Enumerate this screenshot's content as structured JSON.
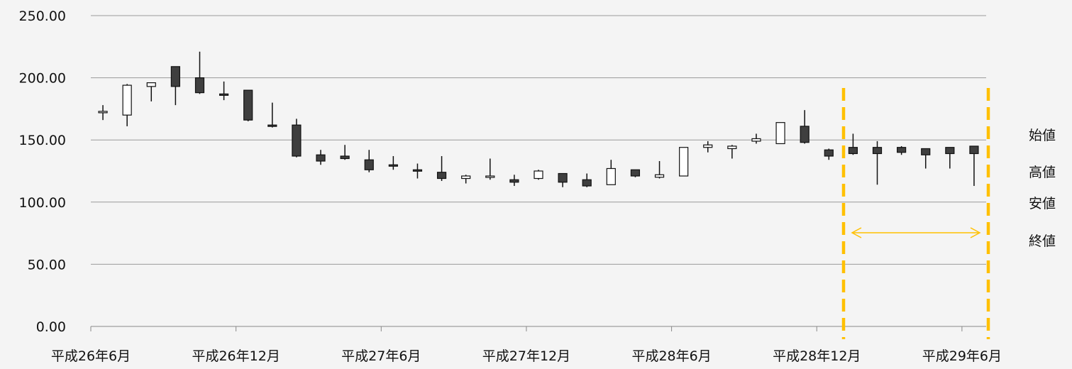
{
  "chart_data": {
    "type": "candlestick",
    "y_axis": {
      "min": 0,
      "max": 250,
      "step": 50,
      "tick_labels": [
        "0.00",
        "50.00",
        "100.00",
        "150.00",
        "200.00",
        "250.00"
      ]
    },
    "x_tick_labels": [
      "平成26年6月",
      "平成26年12月",
      "平成27年6月",
      "平成27年12月",
      "平成28年6月",
      "平成28年12月",
      "平成29年6月"
    ],
    "legend": [
      "始値",
      "高値",
      "安値",
      "終値"
    ],
    "series": [
      {
        "open": 172,
        "high": 178,
        "low": 166,
        "close": 173
      },
      {
        "open": 170,
        "high": 195,
        "low": 161,
        "close": 194
      },
      {
        "open": 193,
        "high": 196,
        "low": 181,
        "close": 196
      },
      {
        "open": 209,
        "high": 209,
        "low": 178,
        "close": 193
      },
      {
        "open": 200,
        "high": 221,
        "low": 187,
        "close": 188
      },
      {
        "open": 187,
        "high": 197,
        "low": 182,
        "close": 186
      },
      {
        "open": 190,
        "high": 190,
        "low": 165,
        "close": 166
      },
      {
        "open": 162,
        "high": 180,
        "low": 160,
        "close": 161
      },
      {
        "open": 162,
        "high": 167,
        "low": 136,
        "close": 137
      },
      {
        "open": 138,
        "high": 142,
        "low": 130,
        "close": 133
      },
      {
        "open": 137,
        "high": 146,
        "low": 134,
        "close": 135
      },
      {
        "open": 134,
        "high": 142,
        "low": 124,
        "close": 126
      },
      {
        "open": 130,
        "high": 137,
        "low": 126,
        "close": 129
      },
      {
        "open": 126,
        "high": 131,
        "low": 119,
        "close": 125
      },
      {
        "open": 124,
        "high": 137,
        "low": 117,
        "close": 119
      },
      {
        "open": 119,
        "high": 122,
        "low": 115,
        "close": 121
      },
      {
        "open": 120,
        "high": 135,
        "low": 118,
        "close": 121
      },
      {
        "open": 118,
        "high": 122,
        "low": 113,
        "close": 116
      },
      {
        "open": 119,
        "high": 126,
        "low": 118,
        "close": 125
      },
      {
        "open": 123,
        "high": 123,
        "low": 112,
        "close": 116
      },
      {
        "open": 118,
        "high": 123,
        "low": 112,
        "close": 113
      },
      {
        "open": 114,
        "high": 134,
        "low": 114,
        "close": 127
      },
      {
        "open": 126,
        "high": 126,
        "low": 120,
        "close": 121
      },
      {
        "open": 120,
        "high": 133,
        "low": 119,
        "close": 122
      },
      {
        "open": 121,
        "high": 144,
        "low": 121,
        "close": 144
      },
      {
        "open": 144,
        "high": 149,
        "low": 140,
        "close": 146
      },
      {
        "open": 143,
        "high": 146,
        "low": 135,
        "close": 145
      },
      {
        "open": 149,
        "high": 155,
        "low": 147,
        "close": 151
      },
      {
        "open": 147,
        "high": 164,
        "low": 147,
        "close": 164
      },
      {
        "open": 161,
        "high": 174,
        "low": 147,
        "close": 148
      },
      {
        "open": 142,
        "high": 143,
        "low": 134,
        "close": 137
      },
      {
        "open": 144,
        "high": 155,
        "low": 138,
        "close": 139
      },
      {
        "open": 144,
        "high": 149,
        "low": 114,
        "close": 139
      },
      {
        "open": 144,
        "high": 145,
        "low": 138,
        "close": 140
      },
      {
        "open": 143,
        "high": 143,
        "low": 127,
        "close": 138
      },
      {
        "open": 144,
        "high": 144,
        "low": 127,
        "close": 139
      },
      {
        "open": 145,
        "high": 145,
        "low": 113,
        "close": 139
      }
    ]
  }
}
